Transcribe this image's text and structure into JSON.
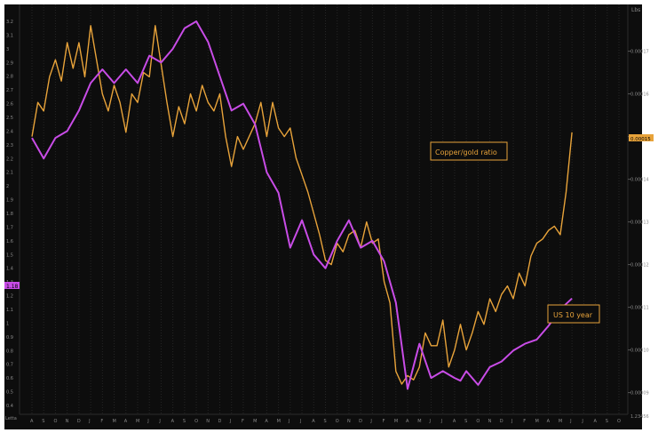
{
  "chart_data": {
    "type": "line",
    "corner_label": "Lbs",
    "left_axis": {
      "ticks": [
        "3.2",
        "3.1",
        "3",
        "2.9",
        "2.8",
        "2.7",
        "2.6",
        "2.5",
        "2.4",
        "2.3",
        "2.2",
        "2.1",
        "2",
        "1.9",
        "1.8",
        "1.7",
        "1.6",
        "1.5",
        "1.4",
        "1.3",
        "1.2",
        "1.1",
        "1",
        "0.9",
        "0.8",
        "0.7",
        "0.6",
        "0.5",
        "0.4"
      ],
      "ylim": [
        0.4,
        3.2
      ],
      "bottom_label": "Letta"
    },
    "right_axis": {
      "ticks": [
        "0.00017",
        "0.00016",
        "0.00015",
        "0.00014",
        "0.00013",
        "0.00012",
        "0.00011",
        "0.00010",
        "0.00009"
      ],
      "ylim": [
        8.7e-05,
        0.000177
      ],
      "last_value": "0.00015",
      "bottom_label": "1.23456"
    },
    "x_months": [
      "A",
      "S",
      "O",
      "N",
      "D",
      "J",
      "F",
      "M",
      "A",
      "M",
      "J",
      "J",
      "A",
      "S",
      "O",
      "N",
      "D",
      "J",
      "F",
      "M",
      "A",
      "M",
      "J",
      "J",
      "A",
      "S",
      "O",
      "N",
      "D",
      "J",
      "F",
      "M",
      "A",
      "M",
      "J",
      "J",
      "A",
      "S",
      "O",
      "N",
      "D",
      "J",
      "F",
      "M",
      "A",
      "M",
      "J",
      "J",
      "A",
      "S",
      "O"
    ],
    "x_range": [
      0,
      50
    ],
    "grid": true,
    "series": [
      {
        "name": "Copper/gold ratio",
        "axis": "right",
        "color": "#e8a33a",
        "x": [
          0,
          0.5,
          1,
          1.5,
          2,
          2.5,
          3,
          3.5,
          4,
          4.5,
          5,
          5.5,
          6,
          6.5,
          7,
          7.5,
          8,
          8.5,
          9,
          9.5,
          10,
          10.5,
          11,
          11.5,
          12,
          12.5,
          13,
          13.5,
          14,
          14.5,
          15,
          15.5,
          16,
          16.5,
          17,
          17.5,
          18,
          18.5,
          19,
          19.5,
          20,
          20.5,
          21,
          21.5,
          22,
          22.5,
          23,
          23.5,
          24,
          24.5,
          25,
          25.5,
          26,
          26.5,
          27,
          27.5,
          28,
          28.5,
          29,
          29.5,
          30,
          30.5,
          31,
          31.5,
          32,
          32.5,
          33,
          33.5,
          34,
          34.5,
          35,
          35.5,
          36,
          36.5,
          37,
          37.5,
          38,
          38.5,
          39,
          39.5,
          40,
          40.5,
          41,
          41.5,
          42,
          42.5,
          43,
          43.5,
          44,
          44.5,
          45,
          45.5,
          46
        ],
        "values": [
          0.00015,
          0.000158,
          0.000156,
          0.000164,
          0.000168,
          0.000163,
          0.000172,
          0.000166,
          0.000172,
          0.000164,
          0.000176,
          0.000168,
          0.00016,
          0.000156,
          0.000162,
          0.000158,
          0.000151,
          0.00016,
          0.000158,
          0.000165,
          0.000164,
          0.000176,
          0.000167,
          0.000158,
          0.00015,
          0.000157,
          0.000153,
          0.00016,
          0.000156,
          0.000162,
          0.000158,
          0.000156,
          0.00016,
          0.00015,
          0.000143,
          0.00015,
          0.000147,
          0.00015,
          0.000153,
          0.000158,
          0.00015,
          0.000158,
          0.000152,
          0.00015,
          0.000152,
          0.000145,
          0.000141,
          0.000137,
          0.000132,
          0.000127,
          0.000121,
          0.00012,
          0.000125,
          0.000123,
          0.000127,
          0.000128,
          0.000124,
          0.00013,
          0.000125,
          0.000126,
          0.000116,
          0.000111,
          9.5e-05,
          9.2e-05,
          9.4e-05,
          9.3e-05,
          9.6e-05,
          0.000104,
          0.000101,
          0.000101,
          0.000107,
          9.6e-05,
          0.0001,
          0.000106,
          0.0001,
          0.000104,
          0.000109,
          0.000106,
          0.000112,
          0.000109,
          0.000113,
          0.000115,
          0.000112,
          0.000118,
          0.000115,
          0.000122,
          0.000125,
          0.000126,
          0.000128,
          0.000129,
          0.000127,
          0.000137,
          0.000151
        ]
      },
      {
        "name": "US 10 year",
        "axis": "left",
        "color": "#c84ce6",
        "x": [
          0,
          1,
          2,
          3,
          4,
          5,
          6,
          7,
          8,
          9,
          10,
          11,
          12,
          13,
          14,
          15,
          16,
          17,
          18,
          19,
          20,
          21,
          22,
          23,
          24,
          25,
          26,
          27,
          28,
          29,
          30,
          31,
          32,
          33,
          34,
          35,
          36,
          36.5,
          37,
          38,
          39,
          40,
          41,
          42,
          43,
          44,
          45,
          46
        ],
        "values": [
          2.35,
          2.2,
          2.35,
          2.4,
          2.55,
          2.75,
          2.85,
          2.75,
          2.85,
          2.75,
          2.95,
          2.9,
          3.0,
          3.15,
          3.2,
          3.05,
          2.8,
          2.55,
          2.6,
          2.45,
          2.1,
          1.95,
          1.55,
          1.75,
          1.5,
          1.4,
          1.6,
          1.75,
          1.55,
          1.6,
          1.45,
          1.15,
          0.52,
          0.85,
          0.6,
          0.65,
          0.6,
          0.58,
          0.65,
          0.55,
          0.68,
          0.72,
          0.8,
          0.85,
          0.88,
          0.98,
          1.1,
          1.18
        ]
      }
    ],
    "annotations": [
      {
        "text": "Copper/gold ratio",
        "color": "#e8a33a"
      },
      {
        "text": "US 10 year",
        "color": "#e8a33a"
      }
    ],
    "background": "#0d0d0d",
    "left_last_value": "1.18"
  }
}
